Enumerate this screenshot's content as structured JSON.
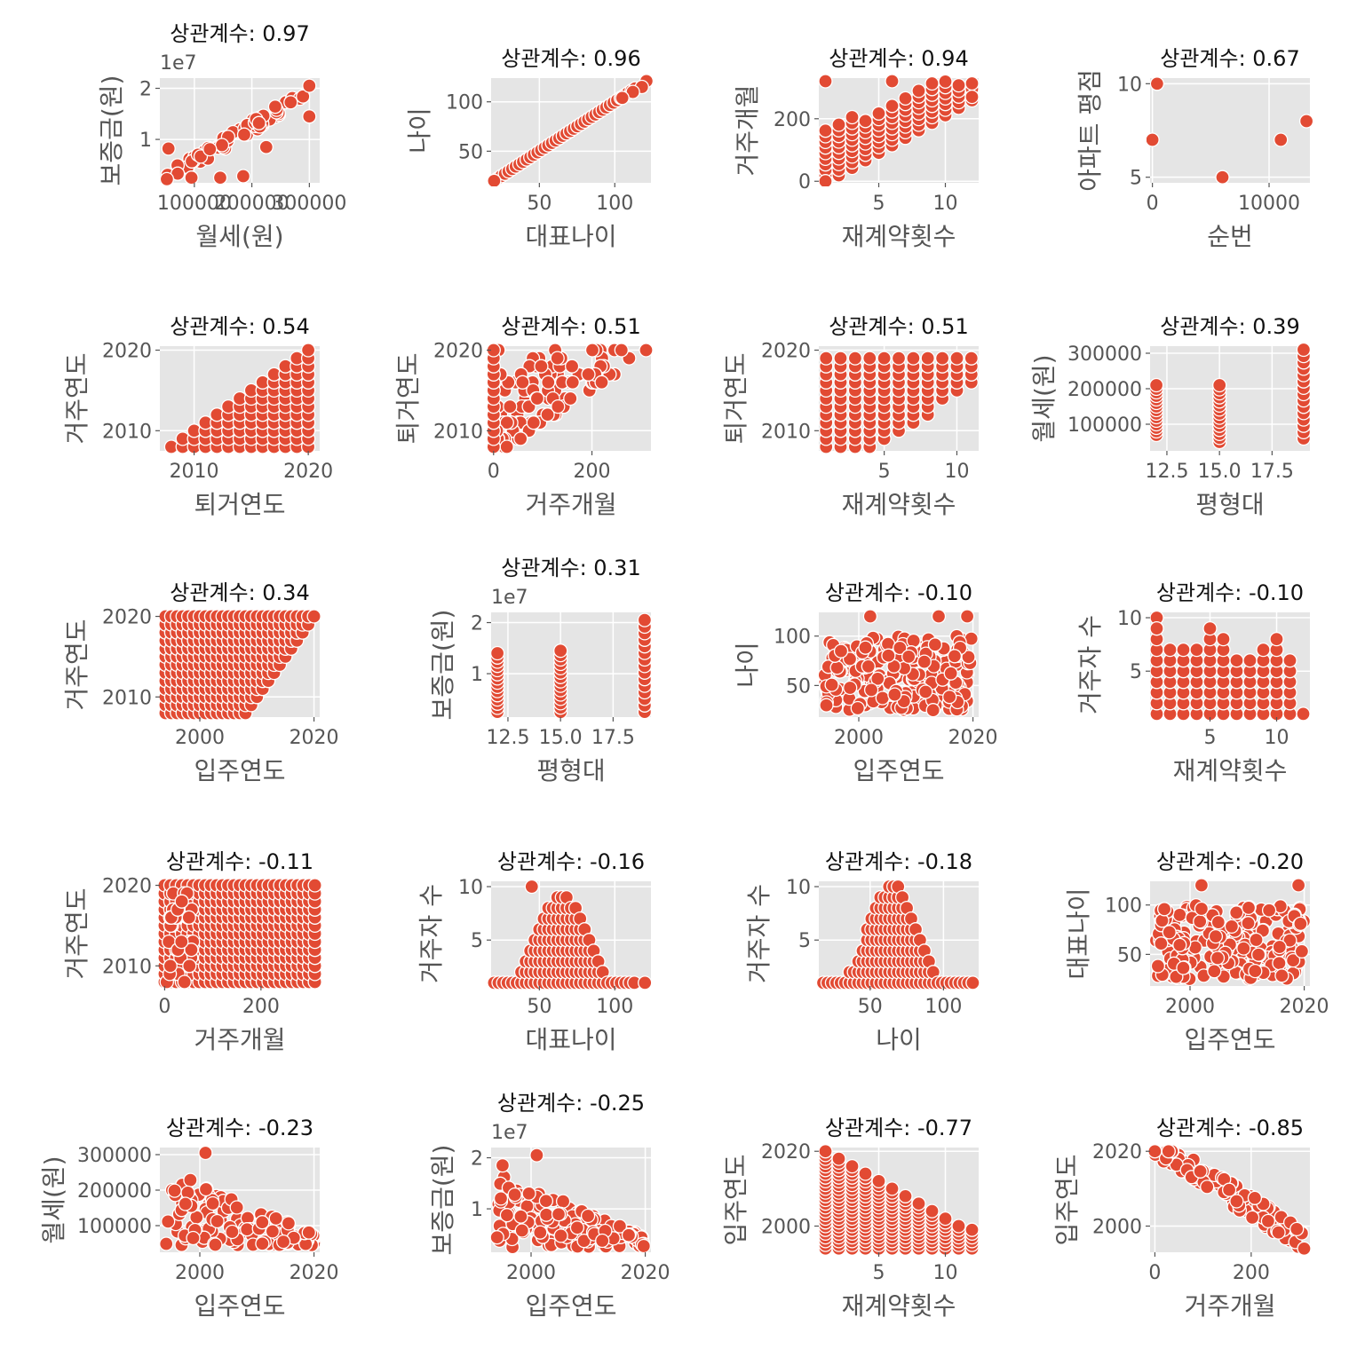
{
  "style": {
    "panel_bg": "#e5e5e5",
    "grid": "#ffffff",
    "point_fill": "#e24a33",
    "point_edge": "#ffffff",
    "text": "#555555"
  },
  "chart_data": [
    {
      "type": "scatter",
      "title": "상관계수: 0.97",
      "xlabel": "월세(원)",
      "ylabel": "보증금(원)",
      "xlim": [
        40000,
        318000
      ],
      "ylim": [
        1500000,
        22000000
      ],
      "xticks": [
        100000,
        200000,
        300000
      ],
      "xticklabels": [
        "100000",
        "200000",
        "300000"
      ],
      "yticks": [
        10000000,
        20000000
      ],
      "yticklabels": [
        "1",
        "2"
      ],
      "y_offset": "1e7",
      "pattern": "corr",
      "params": {
        "slope": 0.97,
        "noise": 0.06,
        "n": 70
      },
      "points": [
        [
          300000,
          20500000
        ],
        [
          300000,
          14500000
        ],
        [
          55000,
          8200000
        ],
        [
          145000,
          2500000
        ],
        [
          225000,
          8500000
        ],
        [
          185000,
          2800000
        ],
        [
          95000,
          2500000
        ]
      ],
      "grid": true
    },
    {
      "type": "scatter",
      "title": "상관계수: 0.96",
      "xlabel": "대표나이",
      "ylabel": "나이",
      "xlim": [
        18,
        124
      ],
      "ylim": [
        18,
        124
      ],
      "xticks": [
        50,
        100
      ],
      "xticklabels": [
        "50",
        "100"
      ],
      "yticks": [
        50,
        100
      ],
      "yticklabels": [
        "50",
        "100"
      ],
      "pattern": "diag",
      "params": {
        "n": 40
      },
      "points": [
        [
          20,
          20
        ],
        [
          121,
          121
        ],
        [
          118,
          115
        ],
        [
          112,
          110
        ],
        [
          105,
          104
        ]
      ],
      "grid": true
    },
    {
      "type": "scatter",
      "title": "상관계수: 0.94",
      "xlabel": "재계약횟수",
      "ylabel": "거주개월",
      "xlim": [
        0.5,
        12.5
      ],
      "ylim": [
        -5,
        330
      ],
      "xticks": [
        5,
        10
      ],
      "xticklabels": [
        "5",
        "10"
      ],
      "yticks": [
        0,
        200
      ],
      "yticklabels": [
        "0",
        "200"
      ],
      "pattern": "band",
      "params": {
        "xs": [
          1,
          2,
          3,
          4,
          5,
          6,
          7,
          8,
          9,
          10,
          11,
          12
        ],
        "base": -5,
        "step": 24,
        "spread": 110
      },
      "points": [
        [
          1,
          0
        ],
        [
          1,
          320
        ],
        [
          12,
          270
        ],
        [
          6,
          320
        ]
      ],
      "grid": true
    },
    {
      "type": "scatter",
      "title": "상관계수: 0.67",
      "xlabel": "순번",
      "ylabel": "아파트 평점",
      "xlim": [
        -200,
        13500
      ],
      "ylim": [
        4.7,
        10.3
      ],
      "xticks": [
        0,
        10000
      ],
      "xticklabels": [
        "0",
        "10000"
      ],
      "yticks": [
        5,
        10
      ],
      "yticklabels": [
        "5",
        "10"
      ],
      "pattern": "points",
      "params": {},
      "points": [
        [
          0,
          7
        ],
        [
          400,
          10
        ],
        [
          6000,
          5
        ],
        [
          11000,
          7
        ],
        [
          13200,
          8
        ]
      ],
      "grid": true
    },
    {
      "type": "scatter",
      "title": "상관계수: 0.54",
      "xlabel": "퇴거연도",
      "ylabel": "거주연도",
      "xlim": [
        2007,
        2021
      ],
      "ylim": [
        2007.5,
        2020.5
      ],
      "xticks": [
        2010,
        2020
      ],
      "xticklabels": [
        "2010",
        "2020"
      ],
      "yticks": [
        2010,
        2020
      ],
      "yticklabels": [
        "2010",
        "2020"
      ],
      "pattern": "tri_low",
      "params": {
        "from": 2008,
        "to": 2020
      },
      "points": [],
      "grid": true
    },
    {
      "type": "scatter",
      "title": "상관계수: 0.51",
      "xlabel": "거주개월",
      "ylabel": "퇴거연도",
      "xlim": [
        -5,
        320
      ],
      "ylim": [
        2007.5,
        2020.5
      ],
      "xticks": [
        0,
        200
      ],
      "xticklabels": [
        "0",
        "200"
      ],
      "yticks": [
        2010,
        2020
      ],
      "yticklabels": [
        "2010",
        "2020"
      ],
      "pattern": "wedge",
      "params": {
        "n": 110
      },
      "points": [
        [
          310,
          2020
        ],
        [
          260,
          2020
        ]
      ],
      "grid": true
    },
    {
      "type": "scatter",
      "title": "상관계수: 0.51",
      "xlabel": "재계약횟수",
      "ylabel": "퇴거연도",
      "xlim": [
        0.5,
        11.5
      ],
      "ylim": [
        2007.5,
        2020.5
      ],
      "xticks": [
        5,
        10
      ],
      "xticklabels": [
        "5",
        "10"
      ],
      "yticks": [
        2010,
        2020
      ],
      "yticklabels": [
        "2010",
        "2020"
      ],
      "pattern": "stair",
      "params": {
        "xs": [
          1,
          2,
          3,
          4,
          5,
          6,
          7,
          8,
          9,
          10,
          11
        ],
        "top": 2019,
        "low0": 2008,
        "rise": 1.1
      },
      "points": [
        [
          11,
          2019
        ]
      ],
      "grid": true
    },
    {
      "type": "scatter",
      "title": "상관계수: 0.39",
      "xlabel": "평형대",
      "ylabel": "월세(원)",
      "xlim": [
        11.7,
        19.3
      ],
      "ylim": [
        25000,
        320000
      ],
      "xticks": [
        12.5,
        15.0,
        17.5
      ],
      "xticklabels": [
        "12.5",
        "15.0",
        "17.5"
      ],
      "yticks": [
        100000,
        200000,
        300000
      ],
      "yticklabels": [
        "100000",
        "200000",
        "300000"
      ],
      "pattern": "columns",
      "params": {
        "cols": [
          [
            12,
            70000,
            210000
          ],
          [
            15,
            50000,
            210000
          ],
          [
            19,
            60000,
            310000
          ]
        ]
      },
      "points": [],
      "grid": true
    },
    {
      "type": "scatter",
      "title": "상관계수: 0.34",
      "xlabel": "입주연도",
      "ylabel": "거주연도",
      "xlim": [
        1993,
        2021
      ],
      "ylim": [
        2007.5,
        2020.5
      ],
      "xticks": [
        2000,
        2020
      ],
      "xticklabels": [
        "2000",
        "2020"
      ],
      "yticks": [
        2010,
        2020
      ],
      "yticklabels": [
        "2010",
        "2020"
      ],
      "pattern": "tri_upper",
      "params": {
        "from": 1994,
        "to": 2020
      },
      "points": [],
      "grid": true
    },
    {
      "type": "scatter",
      "title": "상관계수: 0.31",
      "xlabel": "평형대",
      "ylabel": "보증금(원)",
      "xlim": [
        11.7,
        19.3
      ],
      "ylim": [
        1500000,
        22000000
      ],
      "xticks": [
        12.5,
        15.0,
        17.5
      ],
      "xticklabels": [
        "12.5",
        "15.0",
        "17.5"
      ],
      "yticks": [
        10000000,
        20000000
      ],
      "yticklabels": [
        "1",
        "2"
      ],
      "y_offset": "1e7",
      "pattern": "columns",
      "params": {
        "cols": [
          [
            12,
            2500000,
            14000000
          ],
          [
            15,
            2500000,
            14500000
          ],
          [
            19,
            2500000,
            20500000
          ]
        ]
      },
      "points": [],
      "grid": true
    },
    {
      "type": "scatter",
      "title": "상관계수: -0.10",
      "xlabel": "입주연도",
      "ylabel": "나이",
      "xlim": [
        1993,
        2021
      ],
      "ylim": [
        18,
        124
      ],
      "xticks": [
        2000,
        2020
      ],
      "xticklabels": [
        "2000",
        "2020"
      ],
      "yticks": [
        50,
        100
      ],
      "yticklabels": [
        "50",
        "100"
      ],
      "pattern": "cloud",
      "params": {
        "ymin": 25,
        "ymax": 100,
        "n": 220
      },
      "points": [
        [
          2002,
          120
        ],
        [
          2014,
          120
        ],
        [
          2019,
          120
        ]
      ],
      "grid": true
    },
    {
      "type": "scatter",
      "title": "상관계수: -0.10",
      "xlabel": "재계약횟수",
      "ylabel": "거주자 수",
      "xlim": [
        0.5,
        12.5
      ],
      "ylim": [
        0.7,
        10.5
      ],
      "xticks": [
        5,
        10
      ],
      "xticklabels": [
        "5",
        "10"
      ],
      "yticks": [
        5,
        10
      ],
      "yticklabels": [
        "5",
        "10"
      ],
      "pattern": "grid_cols",
      "params": {
        "cols": [
          [
            1,
            10
          ],
          [
            2,
            7
          ],
          [
            3,
            7
          ],
          [
            4,
            7
          ],
          [
            5,
            9
          ],
          [
            6,
            8
          ],
          [
            7,
            6
          ],
          [
            8,
            6
          ],
          [
            9,
            7
          ],
          [
            10,
            8
          ],
          [
            11,
            6
          ],
          [
            12,
            1
          ]
        ]
      },
      "points": [
        [
          1,
          9
        ]
      ],
      "grid": true
    },
    {
      "type": "scatter",
      "title": "상관계수: -0.11",
      "xlabel": "거주개월",
      "ylabel": "거주연도",
      "xlim": [
        -10,
        322
      ],
      "ylim": [
        2007.5,
        2020.5
      ],
      "xticks": [
        0,
        200
      ],
      "xticklabels": [
        "0",
        "200"
      ],
      "yticks": [
        2010,
        2020
      ],
      "yticklabels": [
        "2010",
        "2020"
      ],
      "pattern": "monthgrid",
      "params": {
        "from": 0,
        "to": 312,
        "step": 12
      },
      "points": [],
      "grid": true
    },
    {
      "type": "scatter",
      "title": "상관계수: -0.16",
      "xlabel": "대표나이",
      "ylabel": "거주자 수",
      "xlim": [
        18,
        124
      ],
      "ylim": [
        0.7,
        10.5
      ],
      "xticks": [
        50,
        100
      ],
      "xticklabels": [
        "50",
        "100"
      ],
      "yticks": [
        5,
        10
      ],
      "yticklabels": [
        "5",
        "10"
      ],
      "pattern": "hump",
      "params": {
        "center": 65,
        "width": 22,
        "max": 9,
        "xmin": 20,
        "xmax": 115
      },
      "points": [
        [
          45,
          10
        ],
        [
          120,
          1
        ]
      ],
      "grid": true
    },
    {
      "type": "scatter",
      "title": "상관계수: -0.18",
      "xlabel": "나이",
      "ylabel": "거주자 수",
      "xlim": [
        15,
        124
      ],
      "ylim": [
        0.7,
        10.5
      ],
      "xticks": [
        50,
        100
      ],
      "xticklabels": [
        "50",
        "100"
      ],
      "yticks": [
        5,
        10
      ],
      "yticklabels": [
        "5",
        "10"
      ],
      "pattern": "hump",
      "params": {
        "center": 65,
        "width": 22,
        "max": 10,
        "xmin": 18,
        "xmax": 120
      },
      "points": [
        [
          120,
          1
        ]
      ],
      "grid": true
    },
    {
      "type": "scatter",
      "title": "상관계수: -0.20",
      "xlabel": "입주연도",
      "ylabel": "대표나이",
      "xlim": [
        1993,
        2021
      ],
      "ylim": [
        18,
        124
      ],
      "xticks": [
        2000,
        2020
      ],
      "xticklabels": [
        "2000",
        "2020"
      ],
      "yticks": [
        50,
        100
      ],
      "yticklabels": [
        "50",
        "100"
      ],
      "pattern": "cloud",
      "params": {
        "ymin": 25,
        "ymax": 100,
        "n": 240
      },
      "points": [
        [
          2002,
          120
        ],
        [
          2019,
          120
        ]
      ],
      "grid": true
    },
    {
      "type": "scatter",
      "title": "상관계수: -0.23",
      "xlabel": "입주연도",
      "ylabel": "월세(원)",
      "xlim": [
        1993,
        2021
      ],
      "ylim": [
        25000,
        320000
      ],
      "xticks": [
        2000,
        2020
      ],
      "xticklabels": [
        "2000",
        "2020"
      ],
      "yticks": [
        100000,
        200000,
        300000
      ],
      "yticklabels": [
        "100000",
        "200000",
        "300000"
      ],
      "pattern": "neg_cloud",
      "params": {
        "base": 45000,
        "top": 260000,
        "n": 160
      },
      "points": [
        [
          2001,
          305000
        ]
      ],
      "grid": true
    },
    {
      "type": "scatter",
      "title": "상관계수: -0.25",
      "xlabel": "입주연도",
      "ylabel": "보증금(원)",
      "xlim": [
        1993,
        2021
      ],
      "ylim": [
        1500000,
        22000000
      ],
      "xticks": [
        2000,
        2020
      ],
      "xticklabels": [
        "2000",
        "2020"
      ],
      "yticks": [
        10000000,
        20000000
      ],
      "yticklabels": [
        "1",
        "2"
      ],
      "y_offset": "1e7",
      "pattern": "neg_cloud",
      "params": {
        "base": 2500000,
        "top": 17000000,
        "n": 160
      },
      "points": [
        [
          2001,
          20500000
        ],
        [
          1995,
          18500000
        ]
      ],
      "grid": true
    },
    {
      "type": "scatter",
      "title": "상관계수: -0.77",
      "xlabel": "재계약횟수",
      "ylabel": "입주연도",
      "xlim": [
        0.5,
        12.5
      ],
      "ylim": [
        1993,
        2021
      ],
      "xticks": [
        5,
        10
      ],
      "xticklabels": [
        "5",
        "10"
      ],
      "yticks": [
        2000,
        2020
      ],
      "yticklabels": [
        "2000",
        "2020"
      ],
      "pattern": "stair_neg",
      "params": {
        "xs": [
          1,
          2,
          3,
          4,
          5,
          6,
          7,
          8,
          9,
          10,
          11,
          12
        ],
        "top0": 2020,
        "drop": 2.0,
        "low": 1994
      },
      "points": [
        [
          12,
          1999
        ]
      ],
      "grid": true
    },
    {
      "type": "scatter",
      "title": "상관계수: -0.85",
      "xlabel": "거주개월",
      "ylabel": "입주연도",
      "xlim": [
        -10,
        322
      ],
      "ylim": [
        1993,
        2021
      ],
      "xticks": [
        0,
        200
      ],
      "xticklabels": [
        "0",
        "200"
      ],
      "yticks": [
        2000,
        2020
      ],
      "yticklabels": [
        "2000",
        "2020"
      ],
      "pattern": "neg_band",
      "params": {
        "n": 110
      },
      "points": [
        [
          0,
          2020
        ],
        [
          310,
          1994
        ]
      ],
      "grid": true
    }
  ]
}
